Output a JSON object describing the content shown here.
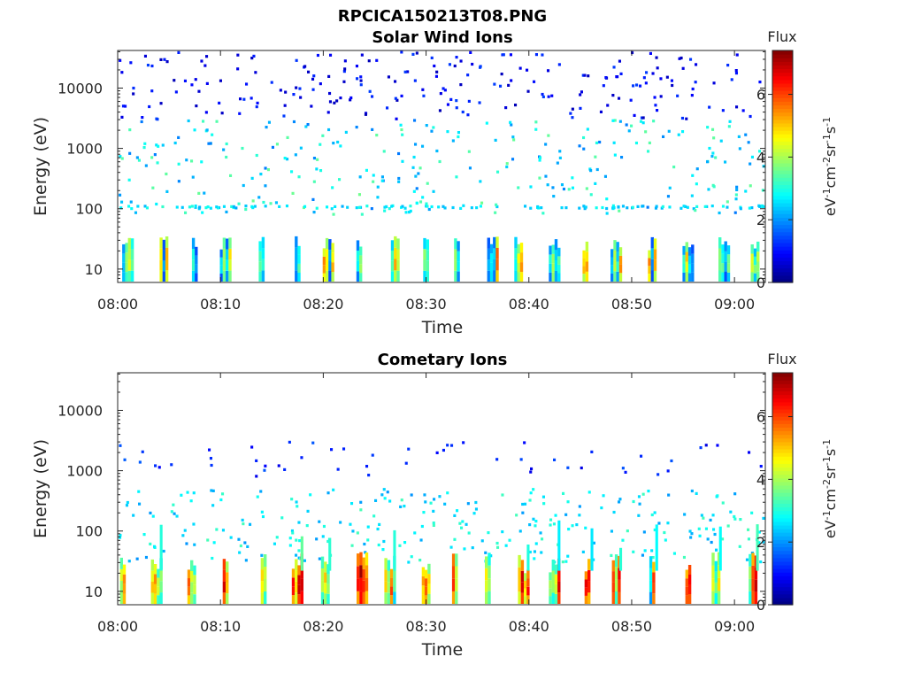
{
  "figure_title": "RPCICA150213T08.PNG",
  "colormap": [
    "#00007f",
    "#0000ff",
    "#007fff",
    "#00ffff",
    "#7fff7f",
    "#ffff00",
    "#ff7f00",
    "#ff0000",
    "#7f0000"
  ],
  "chart_data": [
    {
      "type": "heatmap",
      "title": "Solar Wind Ions",
      "xlabel": "Time",
      "ylabel": "Energy (eV)",
      "x_ticks": [
        "08:00",
        "08:10",
        "08:20",
        "08:30",
        "08:40",
        "08:50",
        "09:00"
      ],
      "y_ticks": [
        "10",
        "100",
        "1000",
        "10000"
      ],
      "y_scale": "log",
      "ylim": [
        6,
        42000
      ],
      "xlim_minutes": [
        0,
        63
      ],
      "colorbar": {
        "title": "Flux",
        "label": "eV-1cm-2sr-1s-1",
        "ticks": [
          "0",
          "2",
          "4",
          "6"
        ],
        "range": [
          0,
          7.4
        ]
      },
      "burst_times_min": [
        1,
        4.5,
        7.5,
        10.5,
        14,
        17.5,
        20.5,
        23.5,
        27,
        30,
        33,
        36.5,
        39,
        42.5,
        45.5,
        48.5,
        52,
        55.5,
        59,
        62
      ],
      "intensity": "low-energy bursts up to ~6; scattered 100-3000 eV counts ~2-4; sparse high-energy counts ~0.5-1.5"
    },
    {
      "type": "heatmap",
      "title": "Cometary Ions",
      "xlabel": "Time",
      "ylabel": "Energy (eV)",
      "x_ticks": [
        "08:00",
        "08:10",
        "08:20",
        "08:30",
        "08:40",
        "08:50",
        "09:00"
      ],
      "y_ticks": [
        "10",
        "100",
        "1000",
        "10000"
      ],
      "y_scale": "log",
      "ylim": [
        6,
        42000
      ],
      "xlim_minutes": [
        0,
        63
      ],
      "colorbar": {
        "title": "Flux",
        "label": "eV-1cm-2sr-1s-1",
        "ticks": [
          "0",
          "2",
          "4",
          "6"
        ],
        "range": [
          0,
          7.4
        ]
      },
      "burst_times_min": [
        0.5,
        3.8,
        7.2,
        10.5,
        14.2,
        17.5,
        20.2,
        23.8,
        26.5,
        30,
        32.8,
        36,
        39.5,
        42.5,
        45.7,
        48.5,
        52,
        55.5,
        58.2,
        61.8
      ],
      "intensity": "strong low-energy bursts (8-30 eV) up to ~7.3; 30-500 eV band ~2-3; rare isolated high-energy counts ~1"
    }
  ]
}
